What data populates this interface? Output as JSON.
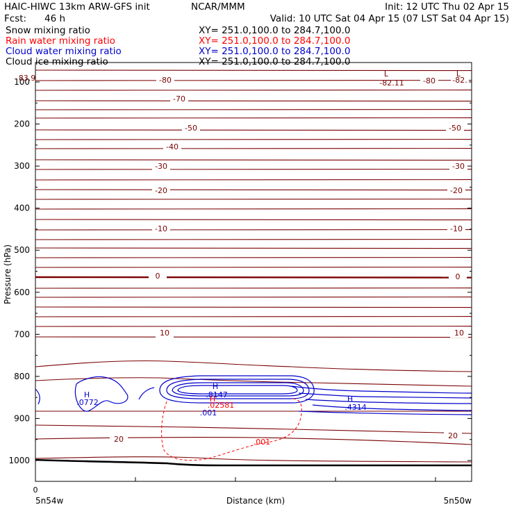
{
  "header": {
    "line1_left": "HAIC-HIWC 13km ARW-GFS init",
    "line1_mid": "NCAR/MMM",
    "line1_right": "Init: 12 UTC Thu 02 Apr 15",
    "line2_left": "Fcst:",
    "line2_fcst": "46 h",
    "line2_right": "Valid: 10 UTC Sat 04 Apr 15 (07 LST Sat 04 Apr 15)"
  },
  "fields": [
    {
      "name": "Snow mixing ratio",
      "xy": "XY= 251.0,100.0 to 284.7,100.0",
      "color": "#000000"
    },
    {
      "name": "Rain water mixing ratio",
      "xy": "XY= 251.0,100.0 to 284.7,100.0",
      "color": "#ff0000"
    },
    {
      "name": "Cloud water mixing ratio",
      "xy": "XY= 251.0,100.0 to 284.7,100.0",
      "color": "#0000cc"
    },
    {
      "name": "Cloud ice mixing ratio",
      "xy": "XY= 251.0,100.0 to 284.7,100.0",
      "color": "#000000"
    }
  ],
  "colors": {
    "temperature": "#7a0000",
    "rain": "#ff0000",
    "cloud_water": "#0000cc",
    "terrain": "#000000"
  },
  "chart_data": {
    "type": "contour-cross-section",
    "ylabel": "Pressure (hPa)",
    "xlabel": "Distance (km)",
    "x_left_label": "5n54w",
    "x_right_label": "5n50w",
    "x_zero_label": "0",
    "yticks": [
      "100",
      "200",
      "300",
      "400",
      "500",
      "600",
      "700",
      "800",
      "900",
      "1000"
    ],
    "ylim": [
      1050,
      50
    ],
    "isotherms_degC": [
      -82,
      -80,
      -70,
      -60,
      -50,
      -40,
      -30,
      -20,
      -10,
      0,
      10,
      20
    ],
    "temperature_labels": [
      "-80",
      "-70",
      "-50",
      "-40",
      "-30",
      "-20",
      "-10",
      "0",
      "10",
      "20",
      "-50",
      "-30",
      "-20",
      "-10",
      "0",
      "10",
      "20",
      "-80",
      "-82."
    ],
    "extrema": [
      {
        "kind": "L",
        "value": "83.9",
        "field": "temperature"
      },
      {
        "kind": "L",
        "value": "-82.11",
        "field": "temperature"
      },
      {
        "kind": "L",
        "value": "",
        "field": "temperature"
      },
      {
        "kind": "H",
        "value": ".0772",
        "field": "cloud_water"
      },
      {
        "kind": "H",
        "value": ".8147",
        "field": "cloud_water"
      },
      {
        "kind": "H",
        "value": ".4314",
        "field": "cloud_water"
      },
      {
        "kind": "H",
        "value": ".02581",
        "field": "rain"
      }
    ],
    "contour_labels": {
      "cloud_water": ".001",
      "rain": ".001"
    }
  }
}
